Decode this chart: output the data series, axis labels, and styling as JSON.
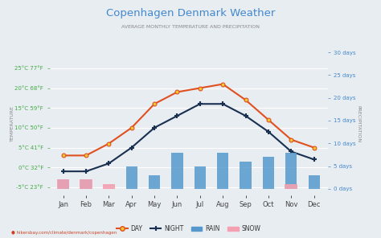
{
  "title": "Copenhagen Denmark Weather",
  "subtitle": "AVERAGE MONTHLY TEMPERATURE AND PRECIPITATION",
  "months": [
    "Jan",
    "Feb",
    "Mar",
    "Apr",
    "May",
    "Jun",
    "Jul",
    "Aug",
    "Sep",
    "Oct",
    "Nov",
    "Dec"
  ],
  "day_temps": [
    3,
    3,
    6,
    10,
    16,
    19,
    20,
    21,
    17,
    12,
    7,
    5
  ],
  "night_temps": [
    -1,
    -1,
    1,
    5,
    10,
    13,
    16,
    16,
    13,
    9,
    4,
    2
  ],
  "rain_days": [
    2,
    2,
    0,
    5,
    3,
    8,
    5,
    8,
    6,
    7,
    8,
    3
  ],
  "snow_days": [
    2,
    2,
    1,
    0,
    0,
    0,
    0,
    0,
    0,
    0,
    1,
    0
  ],
  "left_yticks": [
    -5,
    0,
    5,
    10,
    15,
    20,
    25
  ],
  "left_ylabels": [
    "-5°C 23°F",
    "0°C 32°F",
    "5°C 41°F",
    "10°C 50°F",
    "15°C 59°F",
    "20°C 68°F",
    "25°C 77°F"
  ],
  "right_yticks": [
    0,
    5,
    10,
    15,
    20,
    25,
    30
  ],
  "right_ylabels": [
    "0 days",
    "5 days",
    "10 days",
    "15 days",
    "20 days",
    "25 days",
    "30 days"
  ],
  "ylim_left": [
    -7,
    29
  ],
  "ylim_right": [
    -1.4,
    5.8
  ],
  "day_color": "#e05020",
  "night_color": "#1a3050",
  "rain_color": "#5599cc",
  "snow_color": "#f4a0b0",
  "title_color": "#4488cc",
  "subtitle_color": "#888888",
  "left_label_color": "#44aa44",
  "right_label_color": "#4488cc",
  "bg_color": "#e8edf2",
  "grid_color": "#ffffff",
  "footer": "hikersbay.com/climate/denmark/copenhagen",
  "bar_width": 0.5
}
